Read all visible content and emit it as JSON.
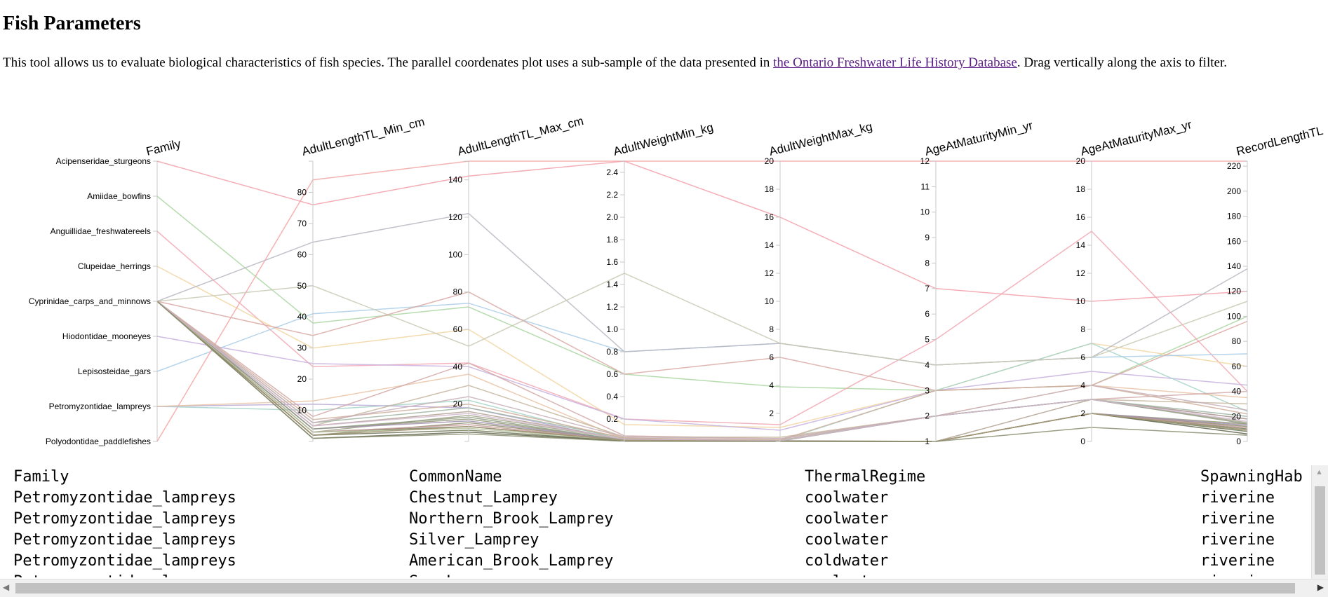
{
  "page": {
    "title": "Fish Parameters",
    "intro_before": "This tool allows us to evaluate biological characteristics of fish species. The parallel coordenates plot uses a sub-sample of the data presented in ",
    "intro_link": "the Ontario Freshwater Life History Database",
    "intro_after": ". Drag vertically along the axis to filter."
  },
  "chart_data": {
    "type": "parallel-coordinates",
    "dimensions": [
      {
        "name": "Family",
        "kind": "categorical",
        "categories": [
          "Acipenseridae_sturgeons",
          "Amiidae_bowfins",
          "Anguillidae_freshwatereels",
          "Clupeidae_herrings",
          "Cyprinidae_carps_and_minnows",
          "Hiodontidae_mooneyes",
          "Lepisosteidae_gars",
          "Petromyzontidae_lampreys",
          "Polyodontidae_paddlefishes"
        ]
      },
      {
        "name": "AdultLengthTL_Min_cm",
        "kind": "numeric",
        "domain": [
          0,
          90
        ],
        "ticks": [
          10,
          20,
          30,
          40,
          50,
          60,
          70,
          80
        ]
      },
      {
        "name": "AdultLengthTL_Max_cm",
        "kind": "numeric",
        "domain": [
          0,
          150
        ],
        "ticks": [
          20,
          40,
          60,
          80,
          100,
          120,
          140
        ]
      },
      {
        "name": "AdultWeightMin_kg",
        "kind": "numeric",
        "domain": [
          0,
          2.5
        ],
        "ticks": [
          0.2,
          0.4,
          0.6,
          0.8,
          1.0,
          1.2,
          1.4,
          1.6,
          1.8,
          2.0,
          2.2,
          2.4
        ]
      },
      {
        "name": "AdultWeightMax_kg",
        "kind": "numeric",
        "domain": [
          0,
          20
        ],
        "ticks": [
          2,
          4,
          6,
          8,
          10,
          12,
          14,
          16,
          18,
          20
        ]
      },
      {
        "name": "AgeAtMaturityMin_yr",
        "kind": "numeric",
        "domain": [
          1,
          12
        ],
        "ticks": [
          1,
          2,
          3,
          4,
          5,
          6,
          7,
          8,
          9,
          10,
          11,
          12
        ]
      },
      {
        "name": "AgeAtMaturityMax_yr",
        "kind": "numeric",
        "domain": [
          0,
          20
        ],
        "ticks": [
          0,
          2,
          4,
          6,
          8,
          10,
          12,
          14,
          16,
          18,
          20
        ]
      },
      {
        "name": "RecordLengthTL",
        "kind": "numeric",
        "domain": [
          0,
          224
        ],
        "ticks": [
          0,
          20,
          40,
          60,
          80,
          100,
          120,
          140,
          160,
          180,
          200,
          220
        ]
      }
    ],
    "records": [
      {
        "v": [
          "Acipenseridae_sturgeons",
          76,
          142,
          2.5,
          16,
          7,
          10,
          120
        ],
        "color": "#f2a0aa"
      },
      {
        "v": [
          "Amiidae_bowfins",
          38,
          72,
          0.6,
          3.9,
          3,
          4,
          100
        ],
        "color": "#a9d6a0"
      },
      {
        "v": [
          "Anguillidae_freshwatereels",
          24,
          42,
          0.2,
          1.2,
          5,
          15,
          40
        ],
        "color": "#f2a7b3"
      },
      {
        "v": [
          "Clupeidae_herrings",
          30,
          60,
          0.15,
          1.0,
          3,
          7,
          60
        ],
        "color": "#f2d5a0"
      },
      {
        "v": [
          "Hiodontidae_mooneyes",
          25,
          40,
          0.2,
          0.8,
          3,
          5,
          45
        ],
        "color": "#c7b2df"
      },
      {
        "v": [
          "Lepisosteidae_gars",
          41,
          74,
          0.8,
          7,
          4,
          6,
          70
        ],
        "color": "#a9cde6"
      },
      {
        "v": [
          "Polyodontidae_paddlefishes",
          84,
          150,
          2.5,
          20,
          12,
          20,
          224
        ],
        "color": "#f5a5a5"
      },
      {
        "v": [
          "Petromyzontidae_lampreys",
          10,
          22,
          0.01,
          0.05,
          3,
          7,
          24
        ],
        "color": "#a4d3c8"
      },
      {
        "v": [
          "Petromyzontidae_lampreys",
          12,
          18,
          0.01,
          0.04,
          2,
          3,
          18
        ],
        "color": "#b9a9d6"
      },
      {
        "v": [
          "Petromyzontidae_lampreys",
          13,
          36,
          0.02,
          0.1,
          2,
          4,
          35
        ],
        "color": "#e9c3a5"
      },
      {
        "v": [
          "Cyprinidae_carps_and_minnows",
          64,
          122,
          0.8,
          7,
          4,
          6,
          138
        ],
        "color": "#b7b7c2"
      },
      {
        "v": [
          "Cyprinidae_carps_and_minnows",
          50,
          51,
          1.5,
          7,
          4,
          6,
          112
        ],
        "color": "#c9c9b4"
      },
      {
        "v": [
          "Cyprinidae_carps_and_minnows",
          34,
          80,
          0.6,
          6,
          3,
          4,
          96
        ],
        "color": "#d9a9a3"
      },
      {
        "v": [
          "Cyprinidae_carps_and_minnows",
          8,
          42,
          0.05,
          0.2,
          2,
          3,
          40
        ],
        "color": "#d2a7a7"
      },
      {
        "v": [
          "Cyprinidae_carps_and_minnows",
          5,
          30,
          0.04,
          0.3,
          2,
          3,
          30
        ],
        "color": "#c5b59d"
      },
      {
        "v": [
          "Cyprinidae_carps_and_minnows",
          3,
          14,
          0.02,
          0.05,
          2,
          3,
          15
        ],
        "color": "#a1a586"
      },
      {
        "v": [
          "Cyprinidae_carps_and_minnows",
          2,
          10,
          0.01,
          0.03,
          1,
          2,
          12
        ],
        "color": "#8a8a6a"
      },
      {
        "v": [
          "Cyprinidae_carps_and_minnows",
          3,
          8,
          0.01,
          0.02,
          1,
          2,
          10
        ],
        "color": "#7c8062"
      },
      {
        "v": [
          "Cyprinidae_carps_and_minnows",
          4,
          12,
          0.01,
          0.04,
          1,
          2,
          14
        ],
        "color": "#909677"
      },
      {
        "v": [
          "Cyprinidae_carps_and_minnows",
          5,
          16,
          0.02,
          0.06,
          1,
          3,
          18
        ],
        "color": "#b0a08f"
      },
      {
        "v": [
          "Cyprinidae_carps_and_minnows",
          6,
          18,
          0.03,
          0.08,
          2,
          3,
          20
        ],
        "color": "#9fb4a2"
      },
      {
        "v": [
          "Cyprinidae_carps_and_minnows",
          2,
          6,
          0.005,
          0.01,
          1,
          2,
          8
        ],
        "color": "#6f7556"
      },
      {
        "v": [
          "Cyprinidae_carps_and_minnows",
          3,
          9,
          0.01,
          0.02,
          1,
          2,
          11
        ],
        "color": "#c79a9a"
      },
      {
        "v": [
          "Cyprinidae_carps_and_minnows",
          4,
          11,
          0.01,
          0.03,
          1,
          2,
          13
        ],
        "color": "#a38fb0"
      },
      {
        "v": [
          "Cyprinidae_carps_and_minnows",
          1,
          5,
          0.003,
          0.01,
          1,
          2,
          6
        ],
        "color": "#5f6348"
      },
      {
        "v": [
          "Cyprinidae_carps_and_minnows",
          7,
          20,
          0.03,
          0.1,
          3,
          4,
          22
        ],
        "color": "#cfae9a"
      },
      {
        "v": [
          "Cyprinidae_carps_and_minnows",
          4,
          13,
          0.01,
          0.03,
          2,
          3,
          14
        ],
        "color": "#8f9c83"
      },
      {
        "v": [
          "Cyprinidae_carps_and_minnows",
          3,
          7,
          0.01,
          0.02,
          1,
          2,
          9
        ],
        "color": "#b6c4a0"
      },
      {
        "v": [
          "Cyprinidae_carps_and_minnows",
          5,
          15,
          0.02,
          0.05,
          2,
          3,
          16
        ],
        "color": "#d4b8d0"
      },
      {
        "v": [
          "Cyprinidae_carps_and_minnows",
          2,
          8,
          0.01,
          0.02,
          1,
          2,
          9
        ],
        "color": "#a09070"
      },
      {
        "v": [
          "Cyprinidae_carps_and_minnows",
          6,
          24,
          0.04,
          0.2,
          2,
          4,
          25
        ],
        "color": "#c8b0b8"
      },
      {
        "v": [
          "Cyprinidae_carps_and_minnows",
          1,
          4,
          0.002,
          0.005,
          1,
          1,
          5
        ],
        "color": "#8a8e70"
      }
    ]
  },
  "table": {
    "columns": [
      "Family",
      "CommonName",
      "ThermalRegime",
      "SpawningHab"
    ],
    "rows": [
      [
        "Petromyzontidae_lampreys",
        "Chestnut_Lamprey",
        "coolwater",
        "riverine"
      ],
      [
        "Petromyzontidae_lampreys",
        "Northern_Brook_Lamprey",
        "coolwater",
        "riverine"
      ],
      [
        "Petromyzontidae_lampreys",
        "Silver_Lamprey",
        "coolwater",
        "riverine"
      ],
      [
        "Petromyzontidae_lampreys",
        "American_Brook_Lamprey",
        "coldwater",
        "riverine"
      ],
      [
        "Petromyzontidae_lampreys",
        "Sea_Lamprey",
        "coolwater",
        "riverine"
      ]
    ]
  }
}
